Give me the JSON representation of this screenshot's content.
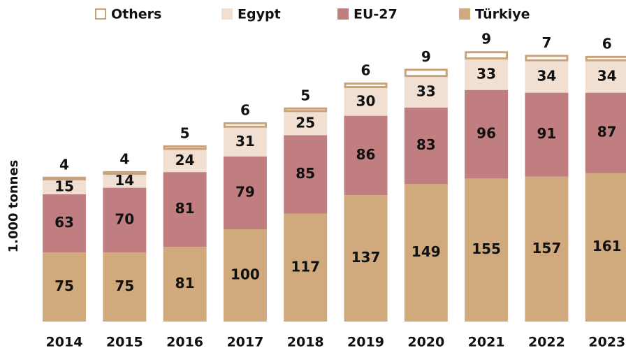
{
  "chart_data": {
    "type": "stacked_bar",
    "y_label": "1.000 tonnes",
    "categories": [
      "2014",
      "2015",
      "2016",
      "2017",
      "2018",
      "2019",
      "2020",
      "2021",
      "2022",
      "2023"
    ],
    "ylim": [
      0,
      300
    ],
    "series": [
      {
        "name": "Türkiye",
        "color": "#d0a97c",
        "values": [
          75,
          75,
          81,
          100,
          117,
          137,
          149,
          155,
          157,
          161
        ]
      },
      {
        "name": "EU-27",
        "color": "#c17e80",
        "values": [
          63,
          70,
          81,
          79,
          85,
          86,
          83,
          96,
          91,
          87
        ]
      },
      {
        "name": "Egypt",
        "color": "#f1e0d1",
        "values": [
          15,
          14,
          24,
          31,
          25,
          30,
          33,
          33,
          34,
          34
        ]
      },
      {
        "name": "Others",
        "color": "#ffffff",
        "outline": "#c9a27a",
        "values": [
          4,
          4,
          5,
          6,
          5,
          6,
          9,
          9,
          7,
          6
        ]
      }
    ]
  }
}
